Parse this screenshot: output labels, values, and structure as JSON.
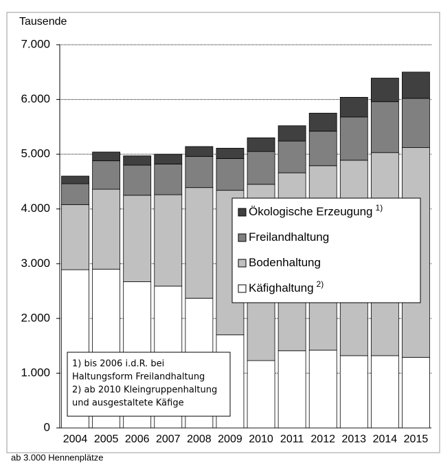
{
  "chart_data": {
    "type": "stacked_bar",
    "y_label": "Tausende",
    "categories": [
      "2004",
      "2005",
      "2006",
      "2007",
      "2008",
      "2009",
      "2010",
      "2011",
      "2012",
      "2013",
      "2014",
      "2015"
    ],
    "series": [
      {
        "name": "Käfighaltung",
        "note": "2)",
        "color": "#ffffff",
        "values": [
          2890,
          2900,
          2670,
          2590,
          2370,
          1700,
          1230,
          1410,
          1420,
          1320,
          1320,
          1290
        ]
      },
      {
        "name": "Bodenhaltung",
        "color": "#c0c0c0",
        "values": [
          1190,
          1460,
          1580,
          1670,
          2020,
          2640,
          3220,
          3250,
          3370,
          3570,
          3710,
          3830
        ]
      },
      {
        "name": "Freilandhaltung",
        "color": "#808080",
        "values": [
          380,
          520,
          550,
          560,
          570,
          580,
          600,
          580,
          630,
          790,
          930,
          900
        ]
      },
      {
        "name": "Ökologische Erzeugung",
        "note": "1)",
        "color": "#404040",
        "values": [
          140,
          160,
          170,
          180,
          180,
          190,
          250,
          280,
          330,
          360,
          430,
          480
        ]
      }
    ],
    "ylim": [
      0,
      7000
    ],
    "yticks": [
      0,
      {
        "value": 1000,
        "label": "1.000"
      },
      {
        "value": 2000,
        "label": "2.000"
      },
      {
        "value": 3000,
        "label": "3.000"
      },
      {
        "value": 4000,
        "label": "4.000"
      },
      {
        "value": 5000,
        "label": "5.000"
      },
      {
        "value": 6000,
        "label": "6.000"
      },
      {
        "value": 7000,
        "label": "7.000"
      }
    ],
    "grid": true,
    "footnotes": [
      "1) bis 2006 i.d.R. bei",
      "Haltungsform Freilandhaltung",
      "2) ab 2010 Kleingruppenhaltung",
      "und ausgestaltete Käfige"
    ],
    "source": "ab 3.000 Hennenplätze"
  }
}
